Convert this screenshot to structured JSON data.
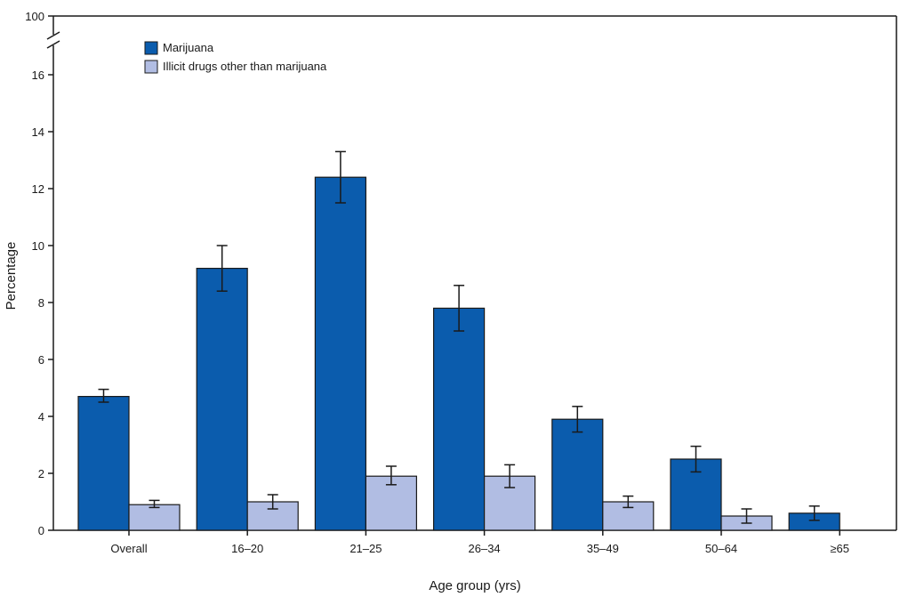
{
  "chart_data": {
    "type": "bar",
    "xlabel": "Age group (yrs)",
    "ylabel": "Percentage",
    "categories": [
      "Overall",
      "16–20",
      "21–25",
      "26–34",
      "35–49",
      "50–64",
      "≥65"
    ],
    "y_ticks": [
      0,
      2,
      4,
      6,
      8,
      10,
      12,
      14,
      16
    ],
    "y_break_label": "100",
    "ylim": [
      0,
      17
    ],
    "axis_break": true,
    "legend_position": "top-left",
    "grid": false,
    "series": [
      {
        "name": "Marijuana",
        "color": "#0b5cad",
        "values": [
          4.7,
          9.2,
          12.4,
          7.8,
          3.9,
          2.5,
          0.6
        ],
        "ci_low": [
          4.5,
          8.4,
          11.5,
          7.0,
          3.45,
          2.05,
          0.35
        ],
        "ci_high": [
          4.95,
          10.0,
          13.3,
          8.6,
          4.35,
          2.95,
          0.85
        ]
      },
      {
        "name": "Illicit drugs other than marijuana",
        "color": "#b1bde3",
        "values": [
          0.9,
          1.0,
          1.9,
          1.9,
          1.0,
          0.5,
          null
        ],
        "ci_low": [
          0.8,
          0.75,
          1.6,
          1.5,
          0.8,
          0.25,
          null
        ],
        "ci_high": [
          1.05,
          1.25,
          2.25,
          2.3,
          1.2,
          0.75,
          null
        ]
      }
    ]
  }
}
